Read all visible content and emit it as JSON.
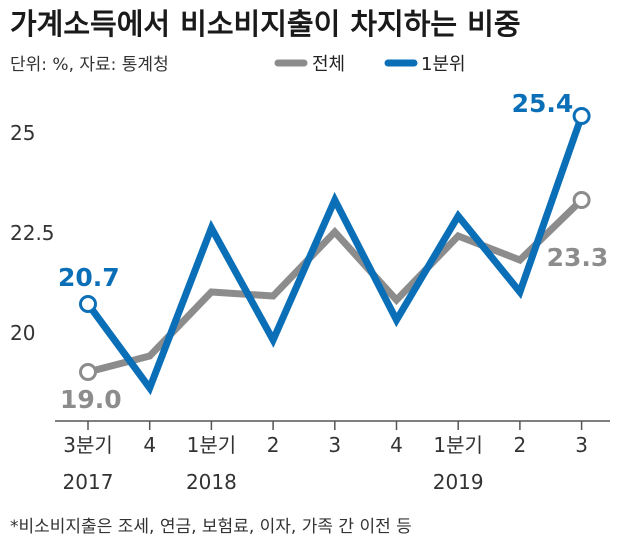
{
  "title": "가계소득에서 비소비지출이 차지하는 비중",
  "meta": "단위: %, 자료: 통계청",
  "footnote": "*비소비지출은 조세, 연금, 보험료, 이자, 가족 간 이전 등",
  "colors": {
    "total": "#8c8c8c",
    "q1": "#0b6fb8",
    "axis": "#555555"
  },
  "chart_data": {
    "type": "line",
    "categories": [
      "3분기",
      "4",
      "1분기",
      "2",
      "3",
      "4",
      "1분기",
      "2",
      "3"
    ],
    "year_labels": [
      {
        "label": "2017",
        "index": 0
      },
      {
        "label": "2018",
        "index": 2
      },
      {
        "label": "2019",
        "index": 6
      }
    ],
    "series": [
      {
        "name": "전체",
        "color_key": "total",
        "values": [
          19.0,
          19.4,
          21.0,
          20.9,
          22.5,
          20.8,
          22.4,
          21.8,
          23.3
        ]
      },
      {
        "name": "1분위",
        "color_key": "q1",
        "values": [
          20.7,
          18.6,
          22.6,
          19.8,
          23.3,
          20.3,
          22.9,
          21.0,
          25.4
        ]
      }
    ],
    "annotations": [
      {
        "series": 0,
        "index": 0,
        "label": "19.0"
      },
      {
        "series": 0,
        "index": 8,
        "label": "23.3"
      },
      {
        "series": 1,
        "index": 0,
        "label": "20.7"
      },
      {
        "series": 1,
        "index": 8,
        "label": "25.4"
      }
    ],
    "yticks": [
      20,
      22.5,
      25
    ],
    "ytick_labels": [
      "20",
      "22.5",
      "25"
    ],
    "ylim": [
      17.8,
      26.3
    ],
    "grid": false,
    "legend": "top-right"
  }
}
